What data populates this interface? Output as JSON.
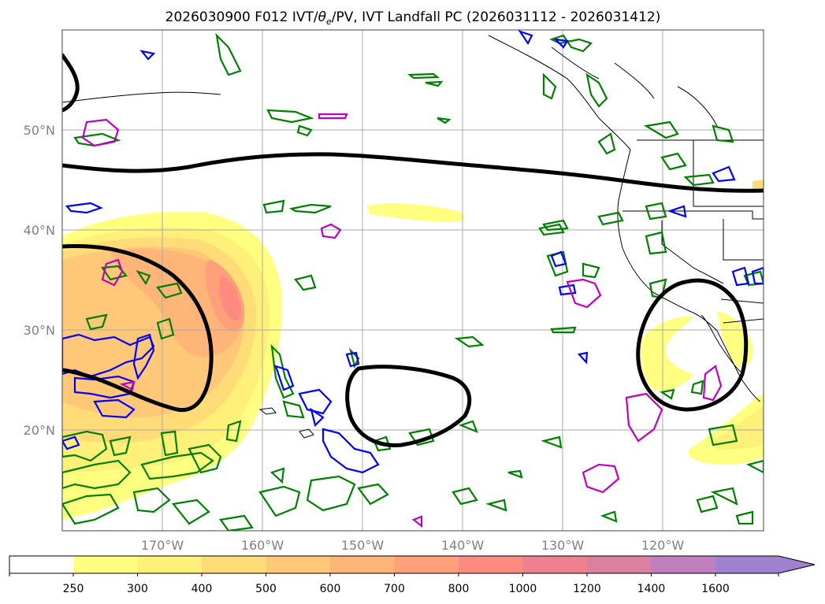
{
  "title": {
    "prefix": "2026030900 F012 IVT/",
    "theta": "θ",
    "sub": "e",
    "suffix": "/PV, IVT Landfall PC (2026031112 - 2026031412)"
  },
  "map": {
    "lat_labels": [
      "50°N",
      "40°N",
      "30°N",
      "20°N"
    ],
    "lon_labels": [
      "170°W",
      "160°W",
      "150°W",
      "140°W",
      "130°W",
      "120°W"
    ],
    "colors": {
      "frame": "#444444",
      "grid": "#aaaaaa",
      "coast": "#000000",
      "pc_contour": "#000000",
      "theta_e": "#008000",
      "pv_blue": "#0000ff",
      "pv_magenta": "#c000c0",
      "axis_label": "#808080"
    }
  },
  "colorbar": {
    "tick_labels": [
      "250",
      "300",
      "400",
      "500",
      "600",
      "700",
      "800",
      "1000",
      "1200",
      "1400",
      "1600"
    ],
    "colors": [
      "#ffffff",
      "#ffff80",
      "#fff07a",
      "#ffdc78",
      "#ffc878",
      "#ffb478",
      "#ffa07a",
      "#ff8a80",
      "#f08090",
      "#dc80a0",
      "#c080c0",
      "#a080d0"
    ]
  }
}
